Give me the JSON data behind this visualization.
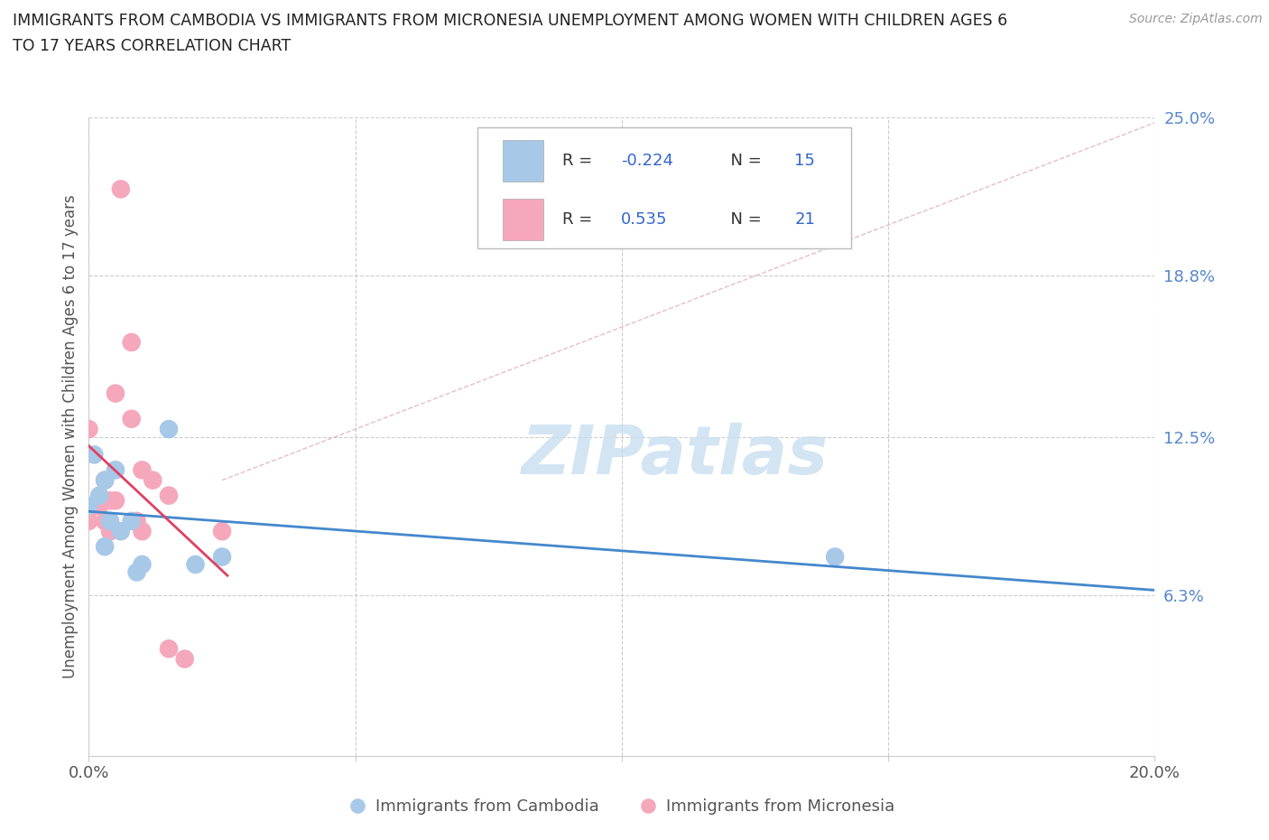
{
  "title_line1": "IMMIGRANTS FROM CAMBODIA VS IMMIGRANTS FROM MICRONESIA UNEMPLOYMENT AMONG WOMEN WITH CHILDREN AGES 6",
  "title_line2": "TO 17 YEARS CORRELATION CHART",
  "source": "Source: ZipAtlas.com",
  "ylabel": "Unemployment Among Women with Children Ages 6 to 17 years",
  "xlim": [
    0.0,
    0.2
  ],
  "ylim": [
    0.0,
    0.25
  ],
  "xticks": [
    0.0,
    0.05,
    0.1,
    0.15,
    0.2
  ],
  "xticklabels": [
    "0.0%",
    "",
    "",
    "",
    "20.0%"
  ],
  "ytick_positions": [
    0.063,
    0.125,
    0.188,
    0.25
  ],
  "yticklabels": [
    "6.3%",
    "12.5%",
    "18.8%",
    "25.0%"
  ],
  "cambodia_r": "-0.224",
  "cambodia_n": "15",
  "micronesia_r": "0.535",
  "micronesia_n": "21",
  "cambodia_color": "#a8c8e8",
  "micronesia_color": "#f5a8bc",
  "cambodia_line_color": "#4488cc",
  "micronesia_line_color": "#e04060",
  "ytick_color": "#5588cc",
  "legend_r_color": "#3366cc",
  "watermark_color": "#c8dff0",
  "grid_color": "#cccccc",
  "cambodia_label": "Immigrants from Cambodia",
  "micronesia_label": "Immigrants from Micronesia",
  "cambodia_x": [
    0.0,
    0.001,
    0.002,
    0.003,
    0.003,
    0.004,
    0.005,
    0.006,
    0.008,
    0.009,
    0.01,
    0.015,
    0.02,
    0.025,
    0.14
  ],
  "cambodia_y": [
    0.098,
    0.118,
    0.102,
    0.108,
    0.082,
    0.092,
    0.112,
    0.088,
    0.092,
    0.072,
    0.075,
    0.128,
    0.075,
    0.078,
    0.078
  ],
  "micronesia_x": [
    0.0,
    0.0,
    0.001,
    0.002,
    0.003,
    0.003,
    0.004,
    0.004,
    0.005,
    0.005,
    0.006,
    0.008,
    0.008,
    0.009,
    0.01,
    0.01,
    0.012,
    0.015,
    0.015,
    0.018,
    0.025
  ],
  "micronesia_y": [
    0.128,
    0.092,
    0.098,
    0.098,
    0.108,
    0.092,
    0.088,
    0.1,
    0.1,
    0.142,
    0.222,
    0.162,
    0.132,
    0.092,
    0.088,
    0.112,
    0.108,
    0.102,
    0.042,
    0.038,
    0.088
  ],
  "dash_line_x": [
    0.025,
    0.2
  ],
  "dash_line_y": [
    0.108,
    0.248
  ]
}
